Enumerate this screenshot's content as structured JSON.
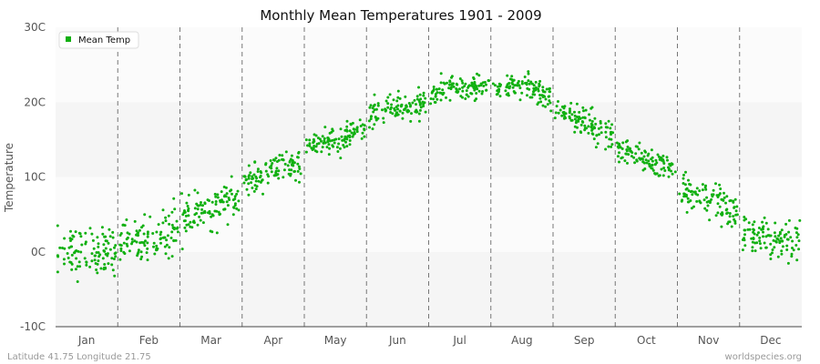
{
  "chart_data": {
    "type": "scatter",
    "title": "Monthly Mean Temperatures 1901 - 2009",
    "ylabel": "Temperature",
    "xlabel": "",
    "categories": [
      "Jan",
      "Feb",
      "Mar",
      "Apr",
      "May",
      "Jun",
      "Jul",
      "Aug",
      "Sep",
      "Oct",
      "Nov",
      "Dec"
    ],
    "y_ticks": [
      "-10C",
      "0C",
      "10C",
      "20C",
      "30C"
    ],
    "y_tick_values": [
      -10,
      0,
      10,
      20,
      30
    ],
    "ylim": [
      -10,
      30
    ],
    "years": [
      1901,
      2009
    ],
    "grid": "horizontal bands, dashed month separators",
    "legend": {
      "position": "top-left"
    },
    "series": [
      {
        "name": "Mean Temp",
        "color": "#11b011",
        "monthly_mean": [
          0.0,
          1.8,
          5.7,
          10.6,
          15.1,
          19.2,
          22.0,
          22.1,
          17.4,
          12.2,
          6.6,
          1.6
        ],
        "monthly_spread": [
          2.2,
          2.0,
          1.6,
          1.3,
          1.3,
          1.2,
          1.0,
          1.2,
          1.3,
          1.2,
          1.7,
          1.6
        ]
      }
    ]
  },
  "footer": {
    "left": "Latitude 41.75 Longitude 21.75",
    "right": "worldspecies.org"
  }
}
